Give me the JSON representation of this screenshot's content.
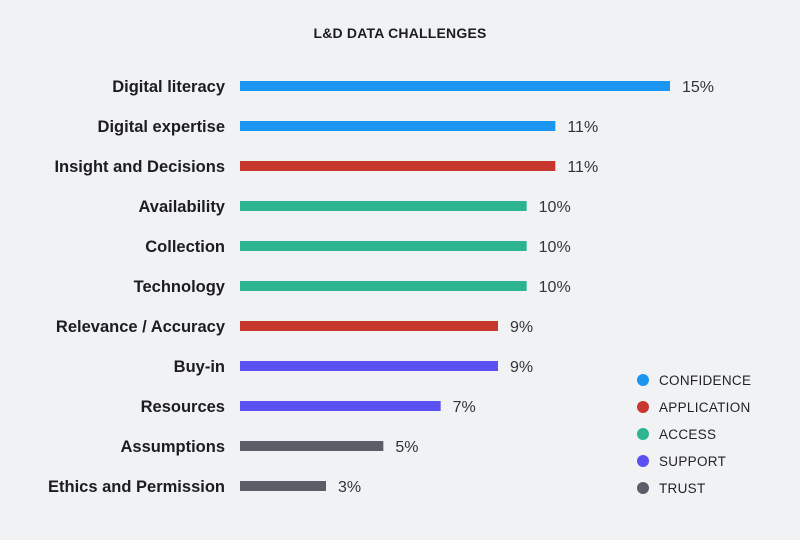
{
  "colors": {
    "confidence": "#1a96f0",
    "application": "#c8372d",
    "access": "#2db592",
    "support": "#5b50f0",
    "trust": "#5c5d66"
  },
  "chart_data": {
    "type": "bar",
    "orientation": "horizontal",
    "title": "L&D DATA CHALLENGES",
    "xlim": [
      0,
      15
    ],
    "grid": false,
    "legend_position": "bottom-right",
    "categories": [
      "Digital literacy",
      "Digital expertise",
      "Insight and Decisions",
      "Availability",
      "Collection",
      "Technology",
      "Relevance / Accuracy",
      "Buy-in",
      "Resources",
      "Assumptions",
      "Ethics and Permission"
    ],
    "values": [
      15,
      11,
      11,
      10,
      10,
      10,
      9,
      9,
      7,
      5,
      3
    ],
    "value_labels": [
      "15%",
      "11%",
      "11%",
      "10%",
      "10%",
      "10%",
      "9%",
      "9%",
      "7%",
      "5%",
      "3%"
    ],
    "groups": [
      "confidence",
      "confidence",
      "application",
      "access",
      "access",
      "access",
      "application",
      "support",
      "support",
      "trust",
      "trust"
    ],
    "legend": [
      {
        "key": "confidence",
        "label": "CONFIDENCE"
      },
      {
        "key": "application",
        "label": "APPLICATION"
      },
      {
        "key": "access",
        "label": "ACCESS"
      },
      {
        "key": "support",
        "label": "SUPPORT"
      },
      {
        "key": "trust",
        "label": "TRUST"
      }
    ]
  }
}
